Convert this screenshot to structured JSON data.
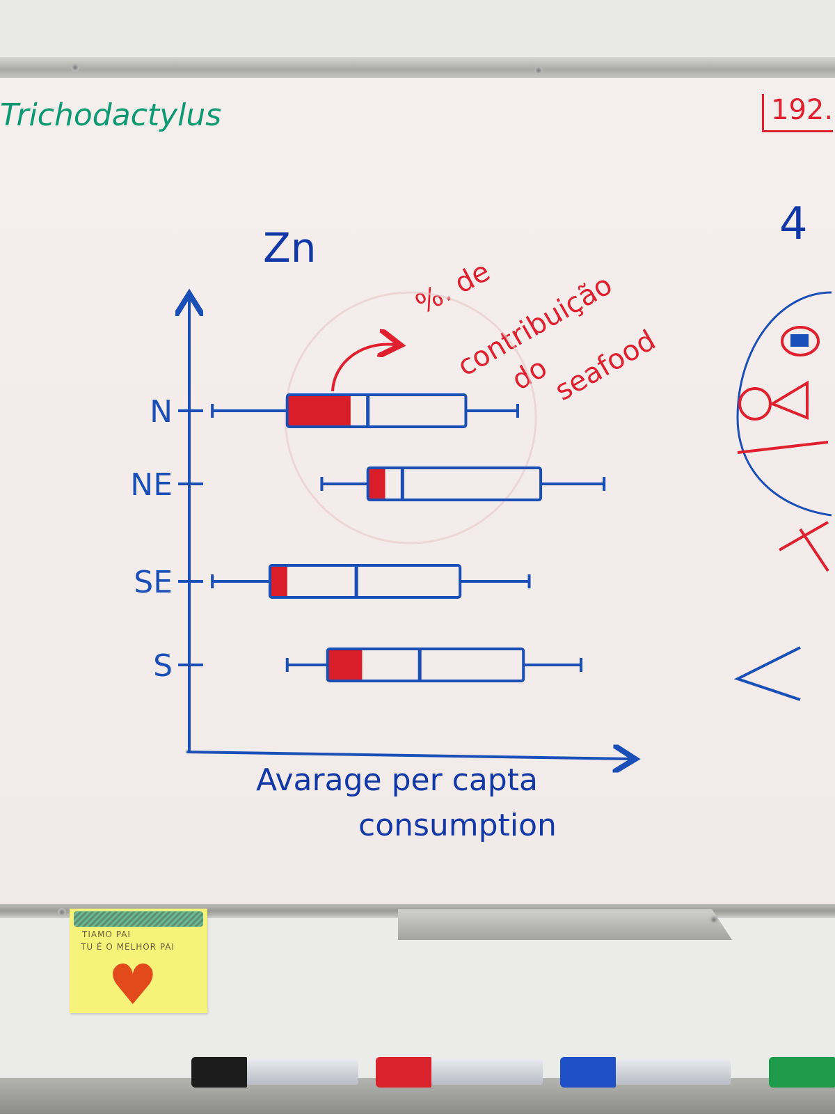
{
  "board": {
    "corner_left_text": "Trichodactylus",
    "corner_right_text": "192.",
    "title": "Zn",
    "annotation_lines": [
      "%. de",
      "contribuição",
      "do",
      "seafood"
    ],
    "x_axis_label_lines": [
      "Avarage per capta",
      "consumption"
    ],
    "right_side_blue_mark": "4"
  },
  "chart_data": {
    "type": "boxplot",
    "title": "Zn",
    "xlabel": "Avarage per capta consumption",
    "ylabel": "",
    "categories": [
      "N",
      "NE",
      "SE",
      "S"
    ],
    "series": [
      {
        "whisker_low": 0.04,
        "q1": 0.17,
        "median": 0.31,
        "q3": 0.48,
        "whisker_high": 0.57,
        "seafood_share_end": 0.28
      },
      {
        "whisker_low": 0.23,
        "q1": 0.31,
        "median": 0.37,
        "q3": 0.61,
        "whisker_high": 0.72,
        "seafood_share_end": 0.34
      },
      {
        "whisker_low": 0.04,
        "q1": 0.14,
        "median": 0.29,
        "q3": 0.47,
        "whisker_high": 0.59,
        "seafood_share_end": 0.17
      },
      {
        "whisker_low": 0.17,
        "q1": 0.24,
        "median": 0.4,
        "q3": 0.58,
        "whisker_high": 0.68,
        "seafood_share_end": 0.3
      }
    ],
    "xlim": [
      0,
      1
    ],
    "grid": false,
    "box_color": "#1a4fb8",
    "seafood_fill_color": "#d91e2a"
  },
  "sticky_note": {
    "line1": "TIAMO PAI",
    "line2": "TU É O MELHOR PAI",
    "heart_icon": "smiling-heart-icon"
  },
  "markers": [
    {
      "name": "black-marker",
      "color": "#1c1c1c"
    },
    {
      "name": "red-marker",
      "color": "#d9222b"
    },
    {
      "name": "blue-marker",
      "color": "#1f4fc7"
    },
    {
      "name": "green-marker",
      "color": "#1d9a4a"
    }
  ]
}
